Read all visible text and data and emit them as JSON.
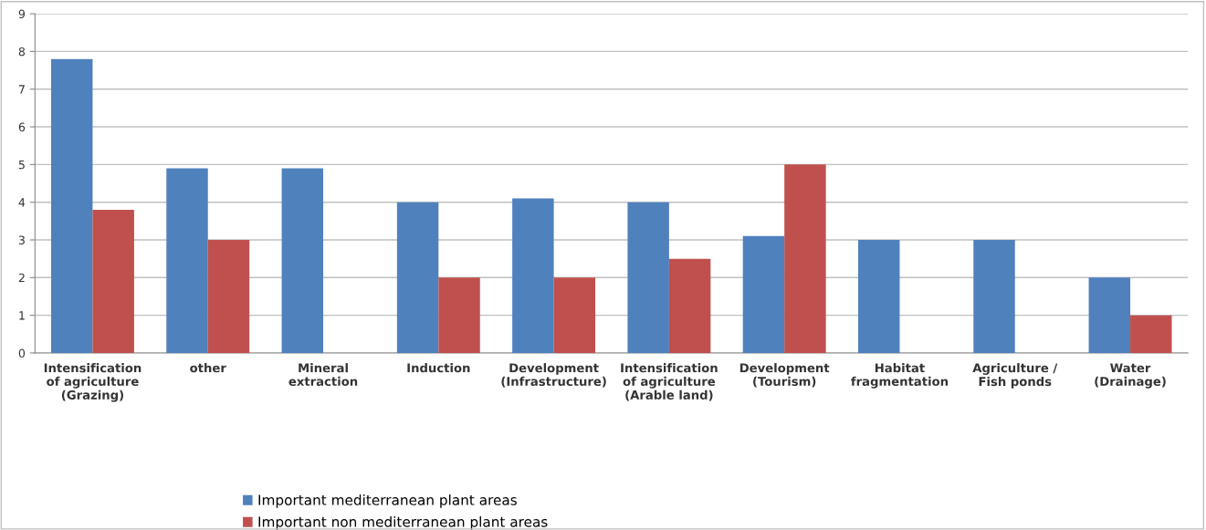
{
  "chart_data": {
    "type": "bar",
    "categories": [
      "Intensification\nof agriculture\n(Grazing)",
      "other",
      "Mineral\nextraction",
      "Induction",
      "Development\n(Infrastructure)",
      "Intensification\nof agriculture\n(Arable land)",
      "Development\n(Tourism)",
      "Habitat\nfragmentation",
      "Agriculture /\nFish ponds",
      "Water\n(Drainage)"
    ],
    "series": [
      {
        "name": "Important mediterranean plant areas",
        "color": "#4f81bd",
        "values": [
          7.8,
          4.9,
          4.9,
          4.0,
          4.1,
          4.0,
          3.1,
          3.0,
          3.0,
          2.0
        ]
      },
      {
        "name": "Important non mediterranean plant areas",
        "color": "#c0504d",
        "values": [
          3.8,
          3.0,
          null,
          2.0,
          2.0,
          2.5,
          5.0,
          null,
          null,
          1.0
        ]
      }
    ],
    "ylim": [
      0,
      9
    ],
    "yticks": [
      0,
      1,
      2,
      3,
      4,
      5,
      6,
      7,
      8,
      9
    ],
    "grid": "y",
    "legend": "bottom"
  }
}
